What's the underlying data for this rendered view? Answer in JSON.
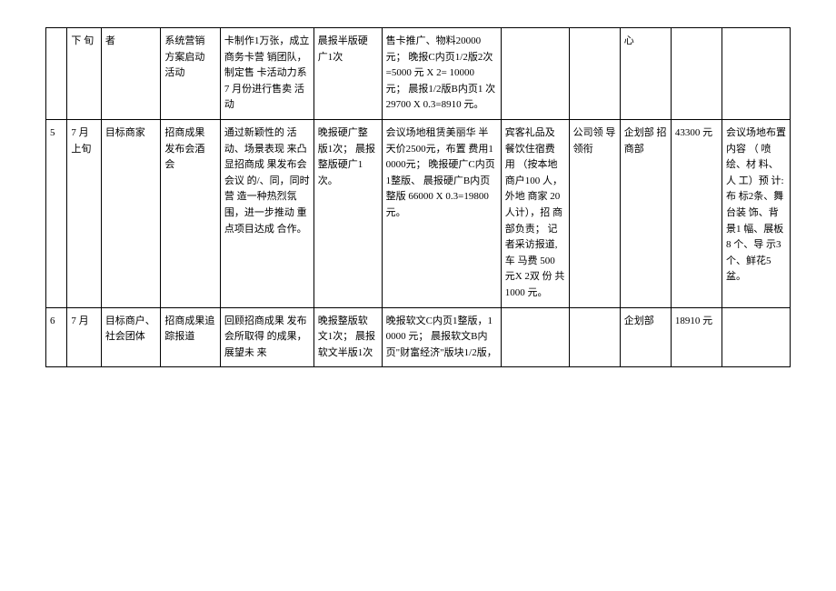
{
  "rows": [
    {
      "idx": "",
      "time": "下 旬",
      "target": "者",
      "activity": "系统营销 方案启动 活动",
      "description": "卡制作1万张，成立商务卡营 销团队，制定售 卡活动力系 7 月份进行售卖 活动",
      "media": "晨报半版硬 广1次",
      "cost": "售卡推广、物料20000元；\n晚报C内页1/2版2次 =5000 元 X 2= 10000 元；\n晨报1/2版B内页1 次 29700 X 0.3=8910 元。",
      "ext1": "",
      "ext2": "",
      "ext3": "心",
      "amount": "",
      "note": ""
    },
    {
      "idx": "5",
      "time": "7 月 上旬",
      "target": "目标商家",
      "activity": "招商成果 发布会酒 会",
      "description": "通过新颖性的 活动、场景表现 来凸显招商成 果发布会会议 的/、同，同时营 造一种热烈氛 围，进一步推动 重点项目达成 合作。",
      "media": "晚报硬广整版1次； 晨报整版硬广1次。",
      "cost": "会议场地租赁美丽华 半天价2500元，布置 费用10000元；\n\n晚报硬广C内页1整版、 晨报硬广B内页整版 66000 X 0.3=19800元。",
      "ext1": "宾客礼品及餐饮住宿费用  （按本地商户100 人，外地 商家 20 人计），招 商部负责；\n\n记者采访报道,车 马费 500 元X 2双 份 共 1000 元。",
      "ext2": "公司领 导领衔",
      "ext3": "企划部 招商部",
      "amount": "43300 元",
      "note": "会议场地布置内容 （ 喷绘、材 料、人 工）预 计: 布 标2条、舞台装 饰、背景1 幅、展板8 个、导 示3个、鲜花5 盆。"
    },
    {
      "idx": "6",
      "time": "7 月",
      "target": "目标商户、社会团体",
      "activity": "招商成果追踪报道",
      "description": "回顾招商成果 发布会所取得 的成果，展望未 来",
      "media": "晚报整版软文1次； 晨报软文半版1次",
      "cost": "晚报软文C内页1整版，10000 元；\n晨报软文B内页\"财富经济\"版块1/2版，",
      "ext1": "",
      "ext2": "",
      "ext3": "企划部",
      "amount": "18910 元",
      "note": ""
    }
  ]
}
